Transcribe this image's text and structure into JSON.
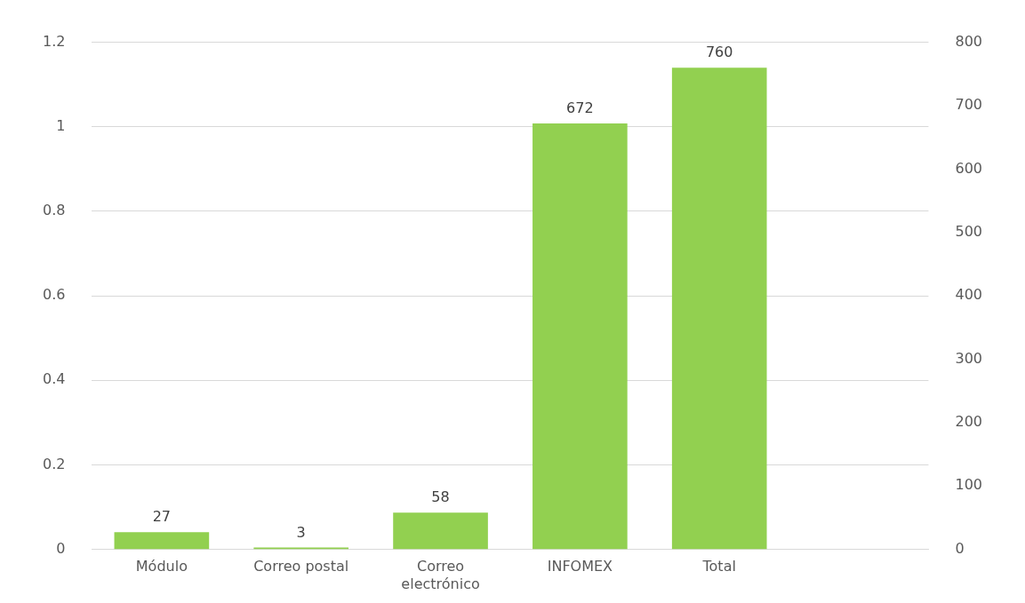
{
  "chart_data": {
    "type": "bar",
    "categories": [
      "Módulo",
      "Correo postal",
      [
        "Correo",
        "electrónico"
      ],
      "INFOMEX",
      "Total",
      null
    ],
    "series": [
      {
        "color": "#92d050",
        "values": [
          27,
          3,
          58,
          672,
          760,
          null
        ],
        "axis": "y2"
      }
    ],
    "ylim": [
      0,
      1.2
    ],
    "yticks": [
      0,
      0.2,
      0.4,
      0.6,
      0.8,
      1,
      1.2
    ],
    "y2lim": [
      0,
      800
    ],
    "y2ticks": [
      0,
      100,
      200,
      300,
      400,
      500,
      600,
      700,
      800
    ],
    "grid": "y",
    "legend": false,
    "data_labels": true
  }
}
